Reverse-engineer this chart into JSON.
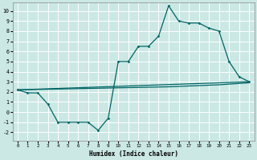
{
  "xlabel": "Humidex (Indice chaleur)",
  "background_color": "#cbe8e4",
  "grid_color": "#ffffff",
  "line_color": "#006666",
  "xlim": [
    -0.5,
    23.5
  ],
  "ylim": [
    -2.8,
    10.8
  ],
  "x_ticks": [
    0,
    1,
    2,
    3,
    4,
    5,
    6,
    7,
    8,
    9,
    10,
    11,
    12,
    13,
    14,
    15,
    16,
    17,
    18,
    19,
    20,
    21,
    22,
    23
  ],
  "y_ticks": [
    -2,
    -1,
    0,
    1,
    2,
    3,
    4,
    5,
    6,
    7,
    8,
    9,
    10
  ],
  "series1_x": [
    0,
    1,
    2,
    3,
    4,
    5,
    6,
    7,
    8,
    9,
    10,
    11,
    12,
    13,
    14,
    15,
    16,
    17,
    18,
    19,
    20,
    21,
    22,
    23
  ],
  "series1_y": [
    2.2,
    1.9,
    1.9,
    0.8,
    -1.0,
    -1.0,
    -1.0,
    -1.0,
    -1.8,
    -0.6,
    5.0,
    5.0,
    6.5,
    6.5,
    7.5,
    10.5,
    9.0,
    8.8,
    8.8,
    8.3,
    8.0,
    5.0,
    3.5,
    3.0
  ],
  "series2_x": [
    0,
    23
  ],
  "series2_y": [
    2.2,
    3.0
  ],
  "series3_x": [
    0,
    10,
    15,
    20,
    23
  ],
  "series3_y": [
    2.2,
    2.4,
    2.5,
    2.7,
    2.9
  ]
}
